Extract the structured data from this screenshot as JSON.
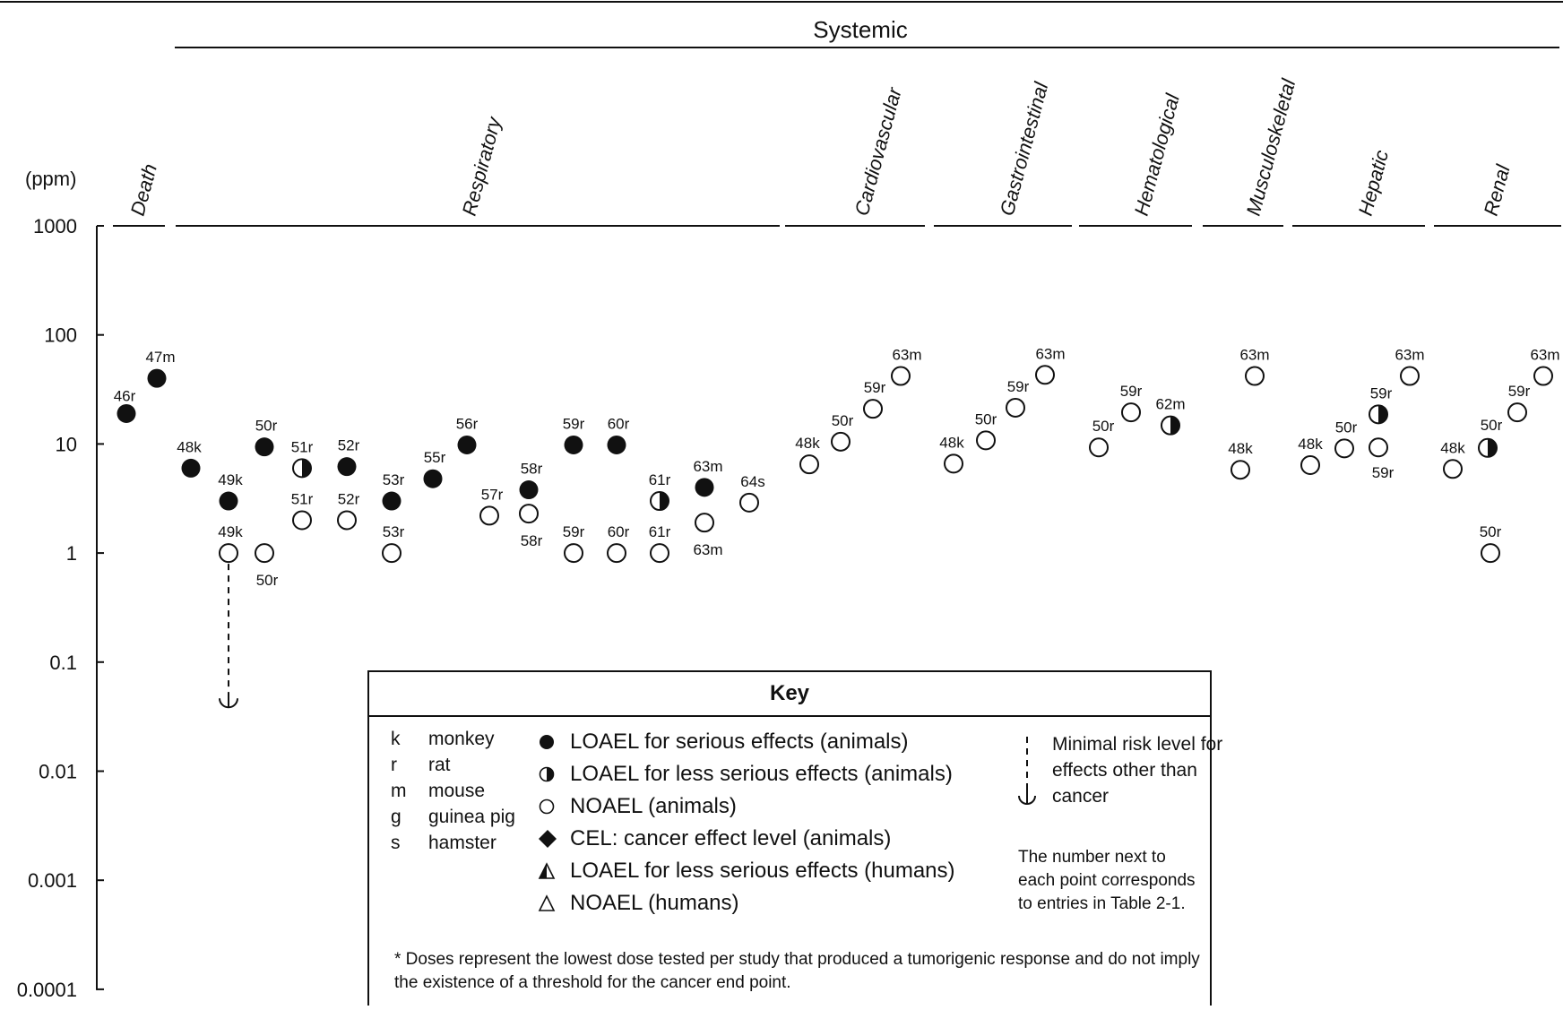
{
  "chart_data": {
    "type": "scatter",
    "yscale": "log",
    "ylim": [
      0.0001,
      1000
    ],
    "ylabel": "(ppm)",
    "yticks": [
      "1000",
      "100",
      "10",
      "1",
      "0.1",
      "0.01",
      "0.001",
      "0.0001"
    ],
    "header": "Systemic",
    "categories": [
      "Death",
      "Respiratory",
      "Cardiovascular",
      "Gastrointestinal",
      "Hematological",
      "Musculoskeletal",
      "Hepatic",
      "Renal"
    ],
    "points": [
      {
        "category": "Death",
        "label": "46r",
        "value": 19,
        "type": "loael_serious"
      },
      {
        "category": "Death",
        "label": "47m",
        "value": 40,
        "type": "loael_serious"
      },
      {
        "category": "Respiratory",
        "label": "48k",
        "value": 6,
        "type": "loael_serious"
      },
      {
        "category": "Respiratory",
        "label": "49k",
        "value": 3,
        "type": "loael_serious"
      },
      {
        "category": "Respiratory",
        "label": "49k",
        "value": 1,
        "type": "noael"
      },
      {
        "category": "Respiratory",
        "label": "50r",
        "value": 9.4,
        "type": "loael_serious"
      },
      {
        "category": "Respiratory",
        "label": "50r",
        "value": 1,
        "type": "noael"
      },
      {
        "category": "Respiratory",
        "label": "51r",
        "value": 6,
        "type": "loael_less"
      },
      {
        "category": "Respiratory",
        "label": "51r",
        "value": 2,
        "type": "noael"
      },
      {
        "category": "Respiratory",
        "label": "52r",
        "value": 6.2,
        "type": "loael_serious"
      },
      {
        "category": "Respiratory",
        "label": "52r",
        "value": 2,
        "type": "noael"
      },
      {
        "category": "Respiratory",
        "label": "53r",
        "value": 3,
        "type": "loael_serious"
      },
      {
        "category": "Respiratory",
        "label": "53r",
        "value": 1,
        "type": "noael"
      },
      {
        "category": "Respiratory",
        "label": "55r",
        "value": 4.8,
        "type": "loael_serious"
      },
      {
        "category": "Respiratory",
        "label": "56r",
        "value": 9.8,
        "type": "loael_serious"
      },
      {
        "category": "Respiratory",
        "label": "57r",
        "value": 2.2,
        "type": "noael"
      },
      {
        "category": "Respiratory",
        "label": "58r",
        "value": 3.8,
        "type": "loael_serious"
      },
      {
        "category": "Respiratory",
        "label": "58r",
        "value": 2.3,
        "type": "noael"
      },
      {
        "category": "Respiratory",
        "label": "59r",
        "value": 9.8,
        "type": "loael_serious"
      },
      {
        "category": "Respiratory",
        "label": "59r",
        "value": 1,
        "type": "noael"
      },
      {
        "category": "Respiratory",
        "label": "60r",
        "value": 9.8,
        "type": "loael_serious"
      },
      {
        "category": "Respiratory",
        "label": "60r",
        "value": 1,
        "type": "noael"
      },
      {
        "category": "Respiratory",
        "label": "61r",
        "value": 3,
        "type": "loael_less"
      },
      {
        "category": "Respiratory",
        "label": "61r",
        "value": 1,
        "type": "noael"
      },
      {
        "category": "Respiratory",
        "label": "63m",
        "value": 4,
        "type": "loael_serious"
      },
      {
        "category": "Respiratory",
        "label": "63m",
        "value": 1.9,
        "type": "noael"
      },
      {
        "category": "Respiratory",
        "label": "64s",
        "value": 2.9,
        "type": "noael"
      },
      {
        "category": "Cardiovascular",
        "label": "48k",
        "value": 6.5,
        "type": "noael"
      },
      {
        "category": "Cardiovascular",
        "label": "50r",
        "value": 10.5,
        "type": "noael"
      },
      {
        "category": "Cardiovascular",
        "label": "59r",
        "value": 21,
        "type": "noael"
      },
      {
        "category": "Cardiovascular",
        "label": "63m",
        "value": 42,
        "type": "noael"
      },
      {
        "category": "Gastrointestinal",
        "label": "48k",
        "value": 6.6,
        "type": "noael"
      },
      {
        "category": "Gastrointestinal",
        "label": "50r",
        "value": 10.8,
        "type": "noael"
      },
      {
        "category": "Gastrointestinal",
        "label": "59r",
        "value": 21.5,
        "type": "noael"
      },
      {
        "category": "Gastrointestinal",
        "label": "63m",
        "value": 43,
        "type": "noael"
      },
      {
        "category": "Hematological",
        "label": "50r",
        "value": 9.3,
        "type": "noael"
      },
      {
        "category": "Hematological",
        "label": "59r",
        "value": 19.5,
        "type": "noael"
      },
      {
        "category": "Hematological",
        "label": "62m",
        "value": 14.8,
        "type": "loael_less"
      },
      {
        "category": "Musculoskeletal",
        "label": "48k",
        "value": 5.8,
        "type": "noael"
      },
      {
        "category": "Musculoskeletal",
        "label": "63m",
        "value": 42,
        "type": "noael"
      },
      {
        "category": "Hepatic",
        "label": "48k",
        "value": 6.4,
        "type": "noael"
      },
      {
        "category": "Hepatic",
        "label": "50r",
        "value": 9.1,
        "type": "noael"
      },
      {
        "category": "Hepatic",
        "label": "59r",
        "value": 18.7,
        "type": "loael_less"
      },
      {
        "category": "Hepatic",
        "label": "59r",
        "value": 9.3,
        "type": "noael"
      },
      {
        "category": "Hepatic",
        "label": "63m",
        "value": 42,
        "type": "noael"
      },
      {
        "category": "Renal",
        "label": "48k",
        "value": 5.9,
        "type": "noael"
      },
      {
        "category": "Renal",
        "label": "50r",
        "value": 9.2,
        "type": "loael_less"
      },
      {
        "category": "Renal",
        "label": "50r",
        "value": 1,
        "type": "noael"
      },
      {
        "category": "Renal",
        "label": "59r",
        "value": 19.5,
        "type": "noael"
      },
      {
        "category": "Renal",
        "label": "63m",
        "value": 42,
        "type": "noael"
      }
    ],
    "mrl": {
      "label": "49k",
      "value": 0.04
    }
  },
  "key": {
    "title": "Key",
    "species": [
      {
        "code": "k",
        "name": "monkey"
      },
      {
        "code": "r",
        "name": "rat"
      },
      {
        "code": "m",
        "name": "mouse"
      },
      {
        "code": "g",
        "name": "guinea pig"
      },
      {
        "code": "s",
        "name": "hamster"
      }
    ],
    "legend": [
      {
        "symbol": "circle-filled",
        "text": "LOAEL for serious effects (animals)"
      },
      {
        "symbol": "circle-half",
        "text": "LOAEL for less serious effects (animals)"
      },
      {
        "symbol": "circle-open",
        "text": "NOAEL (animals)"
      },
      {
        "symbol": "diamond-filled",
        "text": "CEL: cancer effect level (animals)"
      },
      {
        "symbol": "triangle-half",
        "text": "LOAEL for less serious effects (humans)"
      },
      {
        "symbol": "triangle-open",
        "text": "NOAEL (humans)"
      }
    ],
    "mrl_text": "Minimal risk level for effects other than cancer",
    "note": "The number next to each point corresponds to entries in Table 2-1.",
    "footnote": "* Doses represent the lowest dose tested per study that produced a tumorigenic response and do not imply the existence of a threshold for the cancer end point."
  }
}
